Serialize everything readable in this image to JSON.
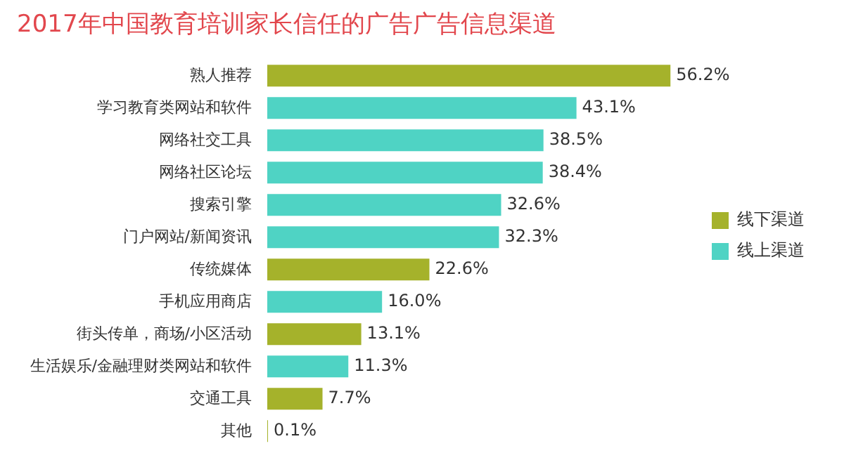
{
  "chart_data": {
    "type": "bar",
    "title": "2017年中国教育培训家长信任的广告广告信息渠道",
    "orientation": "horizontal",
    "stacked": true,
    "legend": "right",
    "categories": [
      "熟人推荐",
      "学习教育类网站和软件",
      "网络社交工具",
      "网络社区论坛",
      "搜索引擎",
      "门户网站/新闻资讯",
      "传统媒体",
      "手机应用商店",
      "街头传单，商场/小区活动",
      "生活娱乐/金融理财类网站和软件",
      "交通工具",
      "其他"
    ],
    "series": [
      {
        "name": "线下渠道",
        "color": "#a5b22b",
        "values": [
          56.2,
          null,
          null,
          null,
          null,
          null,
          22.6,
          null,
          13.1,
          null,
          7.7,
          0.1
        ],
        "value_labels": [
          "56.2%",
          null,
          null,
          null,
          null,
          null,
          "22.6%",
          null,
          "13.1%",
          null,
          "7.7%",
          "0.1%"
        ]
      },
      {
        "name": "线上渠道",
        "color": "#4fd3c4",
        "values": [
          null,
          43.1,
          38.5,
          38.4,
          32.6,
          32.3,
          null,
          16.0,
          null,
          11.3,
          null,
          null
        ],
        "value_labels": [
          null,
          "43.1%",
          "38.5%",
          "38.4%",
          "32.6%",
          "32.3%",
          null,
          "16.0%",
          null,
          "11.3%",
          null,
          null
        ]
      }
    ]
  }
}
